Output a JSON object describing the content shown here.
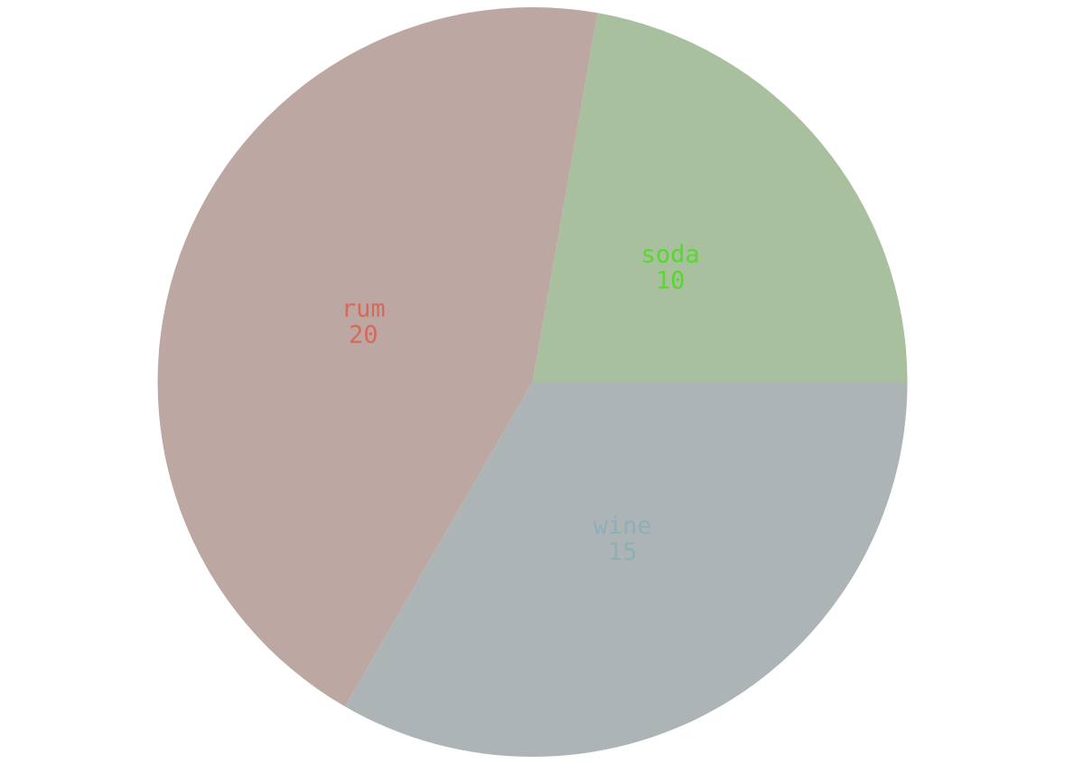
{
  "chart_data": {
    "type": "pie",
    "title": "",
    "start_angle_deg": 0,
    "direction": "counterclockwise",
    "slices": [
      {
        "label": "soda",
        "value": 10,
        "fill": "#a8c09d",
        "text_color": "#57d72f"
      },
      {
        "label": "rum",
        "value": 20,
        "fill": "#bca7a2",
        "text_color": "#d8685b"
      },
      {
        "label": "wine",
        "value": 15,
        "fill": "#adb4b6",
        "text_color": "#90aeb8"
      }
    ]
  }
}
